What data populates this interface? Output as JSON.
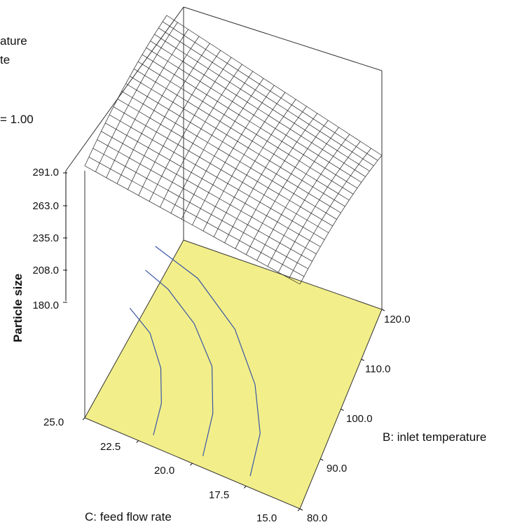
{
  "chart_data": {
    "type": "surface",
    "title_fragments": [
      "ature",
      "te",
      "= 1.00"
    ],
    "zlabel": "Particle size",
    "xlabel": "B: inlet temperature",
    "ylabel": "C: feed flow rate",
    "z_ticks": [
      "291.0",
      "263.0",
      "235.0",
      "208.0",
      "180.0"
    ],
    "x_ticks": [
      "80.0",
      "90.0",
      "100.0",
      "110.0",
      "120.0"
    ],
    "y_ticks": [
      "15.0",
      "17.5",
      "20.0",
      "22.5",
      "25.0"
    ],
    "x_range": [
      80.0,
      120.0
    ],
    "y_range": [
      15.0,
      25.0
    ],
    "z_range": [
      180.0,
      291.0
    ],
    "floor_color": "#f2ee8a",
    "contour_color": "#3a56a5",
    "mesh_color": "#222222"
  }
}
